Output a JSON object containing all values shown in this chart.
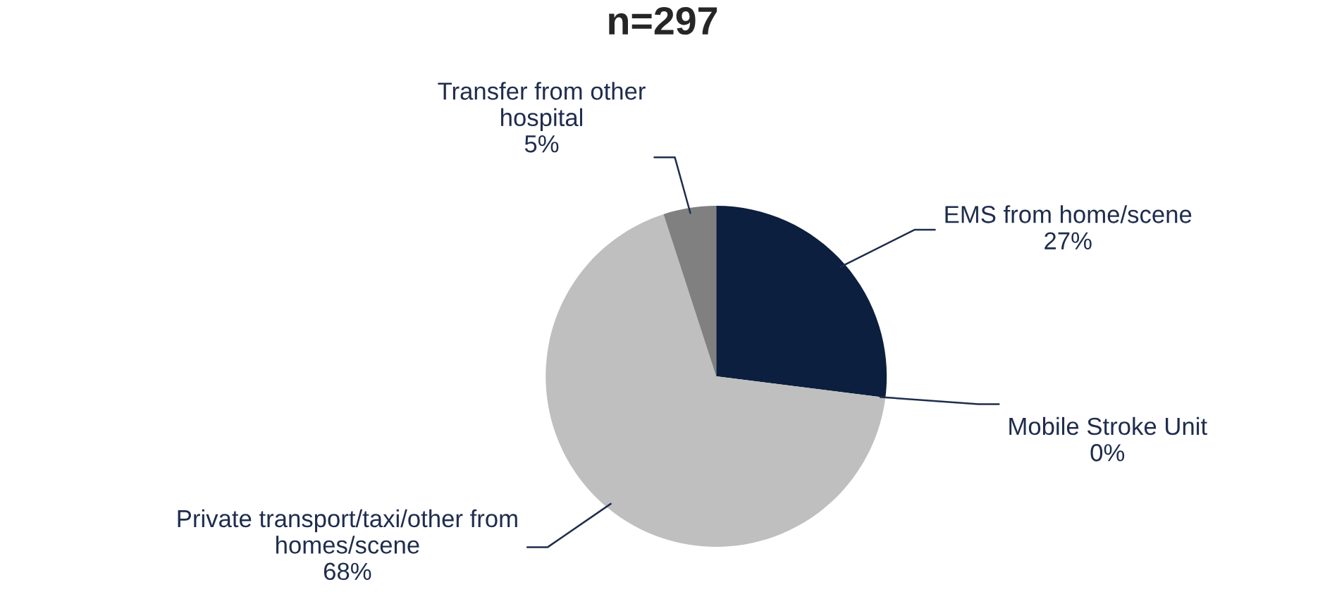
{
  "chart_data": {
    "type": "pie",
    "title": "n=297",
    "categories": [
      "EMS from home/scene",
      "Mobile Stroke Unit",
      "Private transport/taxi/other from\nhomes/scene",
      "Transfer from other\nhospital"
    ],
    "values": [
      27,
      0,
      68,
      5
    ],
    "colors": [
      "#0c1f3f",
      "#1f3864",
      "#bfbfbf",
      "#808080"
    ],
    "value_labels": [
      "27%",
      "0%",
      "68%",
      "5%"
    ]
  }
}
